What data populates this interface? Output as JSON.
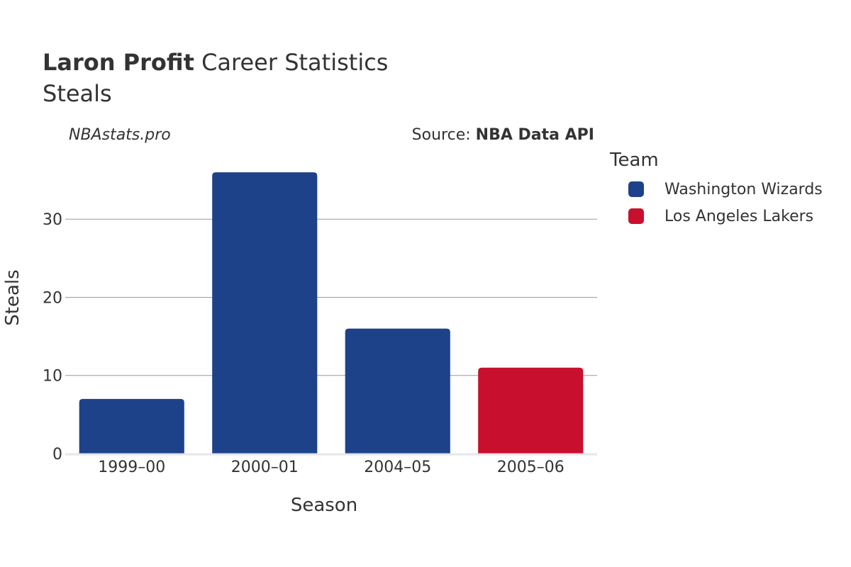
{
  "header": {
    "player": "Laron Profit",
    "title_rest": "Career Statistics",
    "subtitle": "Steals"
  },
  "watermark": "NBAstats.pro",
  "source": {
    "prefix": "Source:",
    "name": "NBA Data API"
  },
  "legend": {
    "title": "Team",
    "items": [
      {
        "label": "Washington Wizards",
        "color": "#1d428a"
      },
      {
        "label": "Los Angeles Lakers",
        "color": "#c8102e"
      }
    ]
  },
  "chart_data": {
    "type": "bar",
    "title": "Laron Profit Career Statistics",
    "subtitle": "Steals",
    "xlabel": "Season",
    "ylabel": "Steals",
    "categories": [
      "1999–00",
      "2000–01",
      "2004–05",
      "2005–06"
    ],
    "values": [
      7,
      36,
      16,
      11
    ],
    "teams": [
      "Washington Wizards",
      "Washington Wizards",
      "Washington Wizards",
      "Los Angeles Lakers"
    ],
    "colors": [
      "#1d428a",
      "#1d428a",
      "#1d428a",
      "#c8102e"
    ],
    "ylim": [
      0,
      39
    ],
    "yticks": [
      0,
      10,
      20,
      30
    ],
    "grid": true,
    "legend_position": "right"
  }
}
